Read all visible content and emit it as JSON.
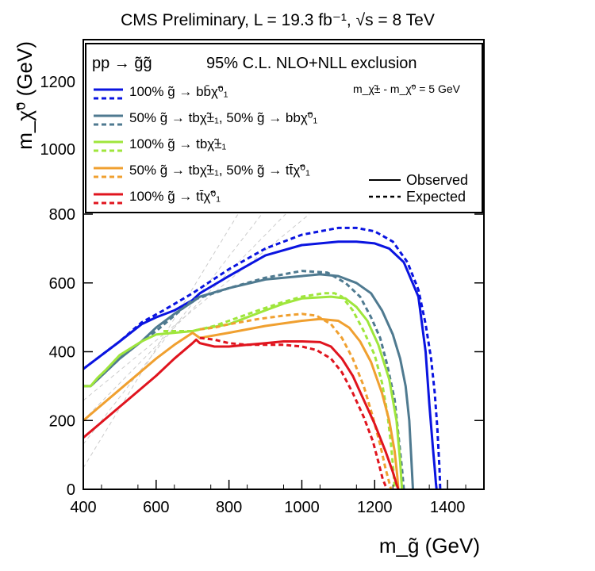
{
  "chart_data": {
    "type": "line",
    "title": "CMS Preliminary, L = 19.3 fb⁻¹, √s = 8 TeV",
    "xlabel": "m_g̃ (GeV)",
    "ylabel": "m_χ̃⁰ (GeV)",
    "xlim": [
      400,
      1500
    ],
    "ylim": [
      0,
      1300
    ],
    "x_ticks": [
      400,
      600,
      800,
      1000,
      1200,
      1400
    ],
    "y_ticks_lower": [
      0,
      200,
      400,
      600,
      800
    ],
    "y_ticks_upper": [
      1000,
      1200
    ],
    "legend": {
      "process": "pp → g̃g̃",
      "header": "95% C.L. NLO+NLL exclusion",
      "mass_note": "m_χ̃± - m_χ̃⁰ = 5 GeV",
      "observed_label": "Observed",
      "expected_label": "Expected",
      "entries": [
        {
          "label": "100%  g̃ → bb̄χ̃⁰₁",
          "color": "#0a14e0"
        },
        {
          "label": "50%  g̃ → tbχ̃±₁, 50%  g̃ → bbχ̃⁰₁",
          "color": "#4f7a90"
        },
        {
          "label": "100%  g̃ → tbχ̃±₁",
          "color": "#9fe63c"
        },
        {
          "label": "50%  g̃ → tbχ̃±₁, 50%  g̃ → tt̄χ̃⁰₁",
          "color": "#f0a030"
        },
        {
          "label": "100%  g̃ → tt̄χ̃⁰₁",
          "color": "#e0141e"
        }
      ]
    },
    "series": [
      {
        "name": "bb observed",
        "color": "#0a14e0",
        "style": "solid",
        "x": [
          400,
          450,
          500,
          560,
          600,
          650,
          700,
          720,
          800,
          900,
          1000,
          1100,
          1150,
          1200,
          1240,
          1280,
          1320,
          1340,
          1350,
          1360,
          1365,
          1368,
          1370
        ],
        "y": [
          350,
          390,
          430,
          480,
          500,
          520,
          550,
          570,
          620,
          680,
          710,
          720,
          720,
          715,
          700,
          660,
          560,
          400,
          250,
          120,
          60,
          20,
          0
        ]
      },
      {
        "name": "bb expected",
        "color": "#0a14e0",
        "style": "dashed",
        "x": [
          400,
          450,
          500,
          560,
          620,
          700,
          800,
          900,
          1000,
          1100,
          1150,
          1200,
          1250,
          1290,
          1320,
          1340,
          1355,
          1365,
          1372,
          1378,
          1380
        ],
        "y": [
          350,
          390,
          430,
          485,
          520,
          570,
          640,
          700,
          740,
          760,
          760,
          750,
          720,
          660,
          580,
          480,
          380,
          280,
          180,
          60,
          0
        ]
      },
      {
        "name": "tb+bb observed",
        "color": "#4f7a90",
        "style": "solid",
        "x": [
          400,
          420,
          440,
          460,
          500,
          560,
          600,
          650,
          700,
          720,
          800,
          900,
          1000,
          1050,
          1100,
          1150,
          1190,
          1220,
          1250,
          1270,
          1285,
          1295,
          1300,
          1305
        ],
        "y": [
          300,
          300,
          320,
          340,
          380,
          430,
          470,
          510,
          545,
          560,
          585,
          610,
          620,
          625,
          620,
          600,
          570,
          520,
          450,
          380,
          300,
          200,
          100,
          0
        ]
      },
      {
        "name": "tb+bb expected",
        "color": "#4f7a90",
        "style": "dashed",
        "x": [
          400,
          420,
          460,
          520,
          600,
          700,
          800,
          900,
          1000,
          1070,
          1120,
          1160,
          1190,
          1215,
          1235,
          1255,
          1265,
          1275,
          1280
        ],
        "y": [
          300,
          300,
          340,
          400,
          460,
          550,
          585,
          615,
          635,
          630,
          600,
          560,
          500,
          440,
          360,
          260,
          160,
          60,
          0
        ]
      },
      {
        "name": "tb observed",
        "color": "#9fe63c",
        "style": "solid",
        "x": [
          400,
          420,
          440,
          460,
          500,
          560,
          600,
          650,
          700,
          720,
          800,
          900,
          950,
          1000,
          1080,
          1120,
          1150,
          1180,
          1210,
          1240,
          1260,
          1270,
          1275
        ],
        "y": [
          300,
          300,
          325,
          345,
          390,
          430,
          450,
          455,
          460,
          465,
          480,
          520,
          540,
          555,
          560,
          555,
          530,
          490,
          420,
          320,
          200,
          80,
          0
        ]
      },
      {
        "name": "tb expected",
        "color": "#9fe63c",
        "style": "dashed",
        "x": [
          620,
          660,
          700,
          760,
          800,
          880,
          950,
          1000,
          1060,
          1090,
          1110,
          1140,
          1170,
          1200,
          1220,
          1235,
          1245,
          1252,
          1255
        ],
        "y": [
          460,
          460,
          460,
          475,
          490,
          520,
          545,
          560,
          570,
          570,
          560,
          520,
          460,
          390,
          310,
          220,
          130,
          50,
          0
        ]
      },
      {
        "name": "tb+tt observed",
        "color": "#f0a030",
        "style": "solid",
        "x": [
          400,
          450,
          500,
          550,
          600,
          650,
          700,
          720,
          800,
          900,
          1000,
          1050,
          1100,
          1130,
          1160,
          1190,
          1220,
          1240,
          1255,
          1262,
          1265
        ],
        "y": [
          200,
          245,
          290,
          335,
          380,
          420,
          455,
          440,
          455,
          475,
          490,
          495,
          490,
          470,
          430,
          370,
          280,
          200,
          110,
          40,
          0
        ]
      },
      {
        "name": "tb+tt expected",
        "color": "#f0a030",
        "style": "dashed",
        "x": [
          720,
          760,
          800,
          880,
          950,
          1000,
          1040,
          1080,
          1110,
          1140,
          1170,
          1195,
          1215,
          1230,
          1240,
          1245
        ],
        "y": [
          465,
          470,
          480,
          495,
          505,
          510,
          505,
          480,
          440,
          380,
          300,
          210,
          130,
          60,
          20,
          0
        ]
      },
      {
        "name": "tt observed",
        "color": "#e0141e",
        "style": "solid",
        "x": [
          400,
          450,
          500,
          550,
          600,
          650,
          700,
          710,
          720,
          760,
          800,
          850,
          900,
          950,
          1000,
          1050,
          1080,
          1110,
          1140,
          1170,
          1200,
          1230,
          1250,
          1260,
          1265
        ],
        "y": [
          150,
          195,
          240,
          285,
          330,
          380,
          425,
          435,
          425,
          415,
          415,
          420,
          425,
          430,
          430,
          428,
          415,
          380,
          330,
          260,
          190,
          110,
          50,
          15,
          0
        ]
      },
      {
        "name": "tt expected",
        "color": "#e0141e",
        "style": "dashed",
        "x": [
          720,
          760,
          800,
          850,
          900,
          950,
          1000,
          1040,
          1080,
          1110,
          1140,
          1170,
          1195,
          1210,
          1222,
          1230,
          1235
        ],
        "y": [
          440,
          435,
          425,
          420,
          420,
          420,
          415,
          405,
          380,
          340,
          280,
          210,
          140,
          80,
          30,
          10,
          0
        ]
      }
    ]
  }
}
